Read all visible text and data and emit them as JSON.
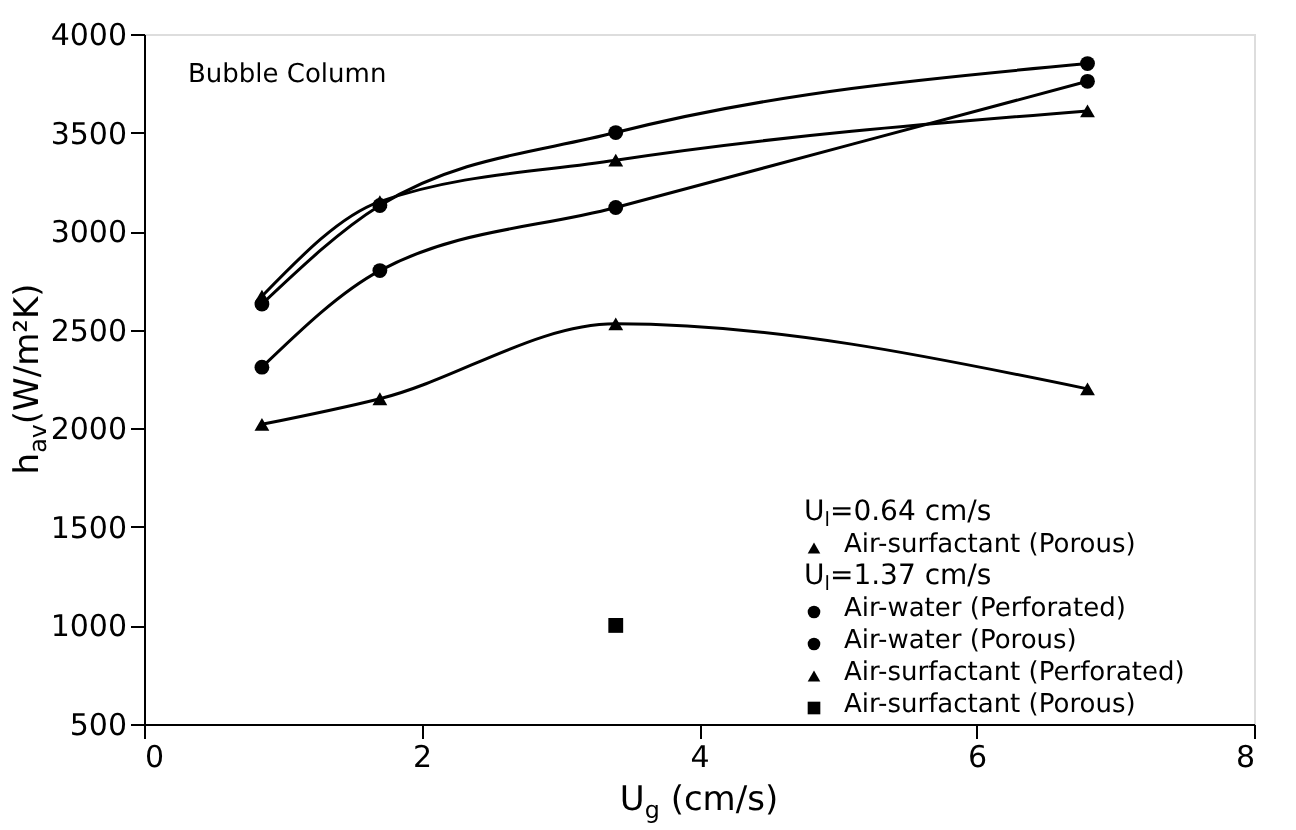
{
  "chart_data": {
    "type": "line",
    "title": "Bubble Column",
    "xlabel": "U$_{g}$ (cm/s)",
    "ylabel": "h$_{av}$(W/m²K)",
    "xlim": [
      0,
      8
    ],
    "xticks": [
      0,
      2,
      4,
      6,
      8
    ],
    "marker": "circle",
    "ylim": [
      500,
      4000
    ],
    "yticks": [
      500,
      1000,
      1500,
      2000,
      2500,
      3000,
      3500,
      4000
    ],
    "grid": false,
    "legend": "bottom right",
    "annotations": [
      "U$_{l}$=0.64 cm/s",
      "U$_{l}$=1.37 cm/s"
    ],
    "series": [
      {
        "name": "Air-surfactant (Porous)",
        "color": "#000000",
        "marker": "triangle",
        "x": [
          0.85,
          1.7,
          3.4,
          6.8
        ],
        "values": [
          2020,
          2150,
          2530,
          2200
        ]
      },
      {
        "name": "Air-water (Perforated)",
        "color": "#000000",
        "x": [
          0.85,
          1.7,
          3.4,
          6.8
        ],
        "values": [
          2630,
          3130,
          3500,
          3850
        ]
      },
      {
        "name": "Air-water (Porous)",
        "color": "#000000",
        "x": [
          0.85,
          1.7,
          3.4,
          6.8
        ],
        "values": [
          2310,
          2800,
          3120,
          3760
        ]
      },
      {
        "name": "Air-surfactant (Perforated)",
        "color": "#000000",
        "marker": "triangle",
        "x": [
          0.85,
          1.7,
          3.4,
          6.8
        ],
        "values": [
          2670,
          3150,
          3360,
          3610
        ]
      },
      {
        "name": "Air-surfactant (Porous)",
        "color": "#000000",
        "type": "scatter",
        "marker": "square",
        "x": [
          3.4
        ],
        "values": [
          1000
        ]
      }
    ]
  }
}
